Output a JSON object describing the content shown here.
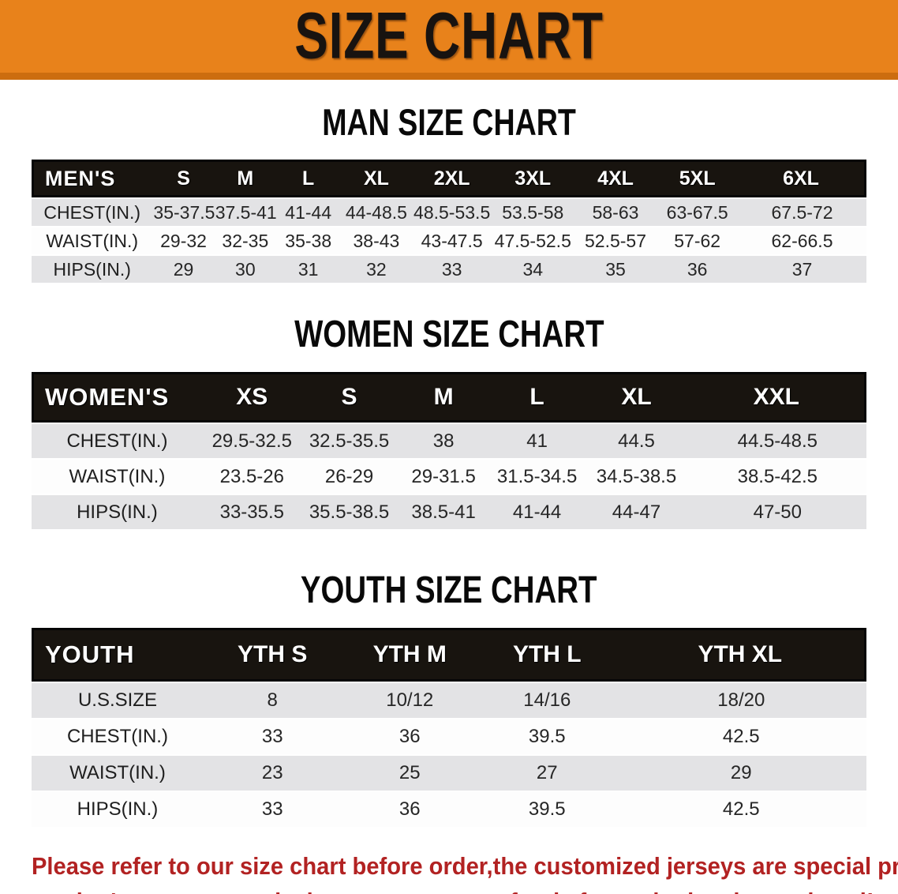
{
  "banner": {
    "title": "SIZE CHART",
    "bg_color": "#E8821B",
    "edge_color": "#CC6D0F",
    "text_color": "#181310"
  },
  "charts": [
    {
      "id": "men",
      "heading": "MAN SIZE CHART",
      "corner_label": "MEN'S",
      "columns": [
        "S",
        "M",
        "L",
        "XL",
        "2XL",
        "3XL",
        "4XL",
        "5XL",
        "6XL"
      ],
      "rows": [
        {
          "label": "CHEST(IN.)",
          "values": [
            "35-37.5",
            "37.5-41",
            "41-44",
            "44-48.5",
            "48.5-53.5",
            "53.5-58",
            "58-63",
            "63-67.5",
            "67.5-72"
          ]
        },
        {
          "label": "WAIST(IN.)",
          "values": [
            "29-32",
            "32-35",
            "35-38",
            "38-43",
            "43-47.5",
            "47.5-52.5",
            "52.5-57",
            "57-62",
            "62-66.5"
          ]
        },
        {
          "label": "HIPS(IN.)",
          "values": [
            "29",
            "30",
            "31",
            "32",
            "33",
            "34",
            "35",
            "36",
            "37"
          ]
        }
      ]
    },
    {
      "id": "women",
      "heading": "WOMEN SIZE CHART",
      "corner_label": "WOMEN'S",
      "columns": [
        "XS",
        "S",
        "M",
        "L",
        "XL",
        "XXL"
      ],
      "rows": [
        {
          "label": "CHEST(IN.)",
          "values": [
            "29.5-32.5",
            "32.5-35.5",
            "38",
            "41",
            "44.5",
            "44.5-48.5"
          ]
        },
        {
          "label": "WAIST(IN.)",
          "values": [
            "23.5-26",
            "26-29",
            "29-31.5",
            "31.5-34.5",
            "34.5-38.5",
            "38.5-42.5"
          ]
        },
        {
          "label": "HIPS(IN.)",
          "values": [
            "33-35.5",
            "35.5-38.5",
            "38.5-41",
            "41-44",
            "44-47",
            "47-50"
          ]
        }
      ]
    },
    {
      "id": "youth",
      "heading": "YOUTH SIZE CHART",
      "corner_label": "YOUTH",
      "columns": [
        "YTH S",
        "YTH M",
        "YTH L",
        "YTH XL"
      ],
      "rows": [
        {
          "label": "U.S.SIZE",
          "values": [
            "8",
            "10/12",
            "14/16",
            "18/20"
          ]
        },
        {
          "label": "CHEST(IN.)",
          "values": [
            "33",
            "36",
            "39.5",
            "42.5"
          ]
        },
        {
          "label": "WAIST(IN.)",
          "values": [
            "23",
            "25",
            "27",
            "29"
          ]
        },
        {
          "label": "HIPS(IN.)",
          "values": [
            "33",
            "36",
            "39.5",
            "42.5"
          ]
        }
      ]
    }
  ],
  "disclaimer": {
    "color": "#B22222",
    "lines": [
      "Please refer to our size chart before order,the customized jerseys are special products,",
      "we don't accept cancel, change, teturn or refund after order has been placed!"
    ]
  }
}
